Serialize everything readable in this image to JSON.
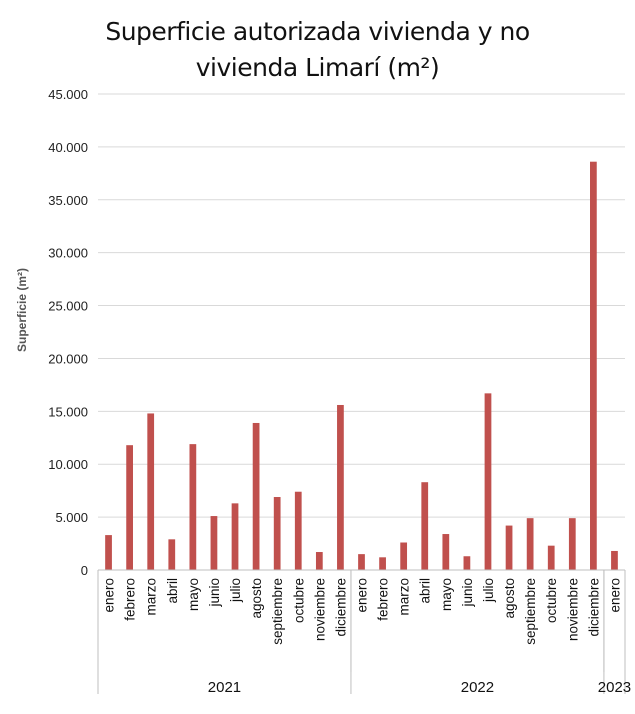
{
  "chart_data": {
    "type": "bar",
    "title_lines": [
      "Superficie autorizada vivienda y no",
      "vivienda Limarí (m²)"
    ],
    "ylabel": "Superficie  (m²)",
    "xlabel": "",
    "ylim": [
      0,
      45000
    ],
    "yticks": [
      0,
      5000,
      10000,
      15000,
      20000,
      25000,
      30000,
      35000,
      40000,
      45000
    ],
    "ytick_labels": [
      "0",
      "5.000",
      "10.000",
      "15.000",
      "20.000",
      "25.000",
      "30.000",
      "35.000",
      "40.000",
      "45.000"
    ],
    "grid": true,
    "legend": "none",
    "bar_color": "#c0504d",
    "groups": [
      {
        "label": "2021",
        "categories": [
          "enero",
          "febrero",
          "marzo",
          "abril",
          "mayo",
          "junio",
          "julio",
          "agosto",
          "septiembre",
          "octubre",
          "noviembre",
          "diciembre"
        ],
        "values": [
          3300,
          11800,
          14800,
          2900,
          11900,
          5100,
          6300,
          13900,
          6900,
          7400,
          1700,
          15600
        ]
      },
      {
        "label": "2022",
        "categories": [
          "enero",
          "febrero",
          "marzo",
          "abril",
          "mayo",
          "junio",
          "julio",
          "agosto",
          "septiembre",
          "octubre",
          "noviembre",
          "diciembre"
        ],
        "values": [
          1500,
          1200,
          2600,
          8300,
          3400,
          1300,
          16700,
          4200,
          4900,
          2300,
          4900,
          38600
        ]
      },
      {
        "label": "2023",
        "categories": [
          "enero"
        ],
        "values": [
          1800
        ]
      }
    ]
  }
}
